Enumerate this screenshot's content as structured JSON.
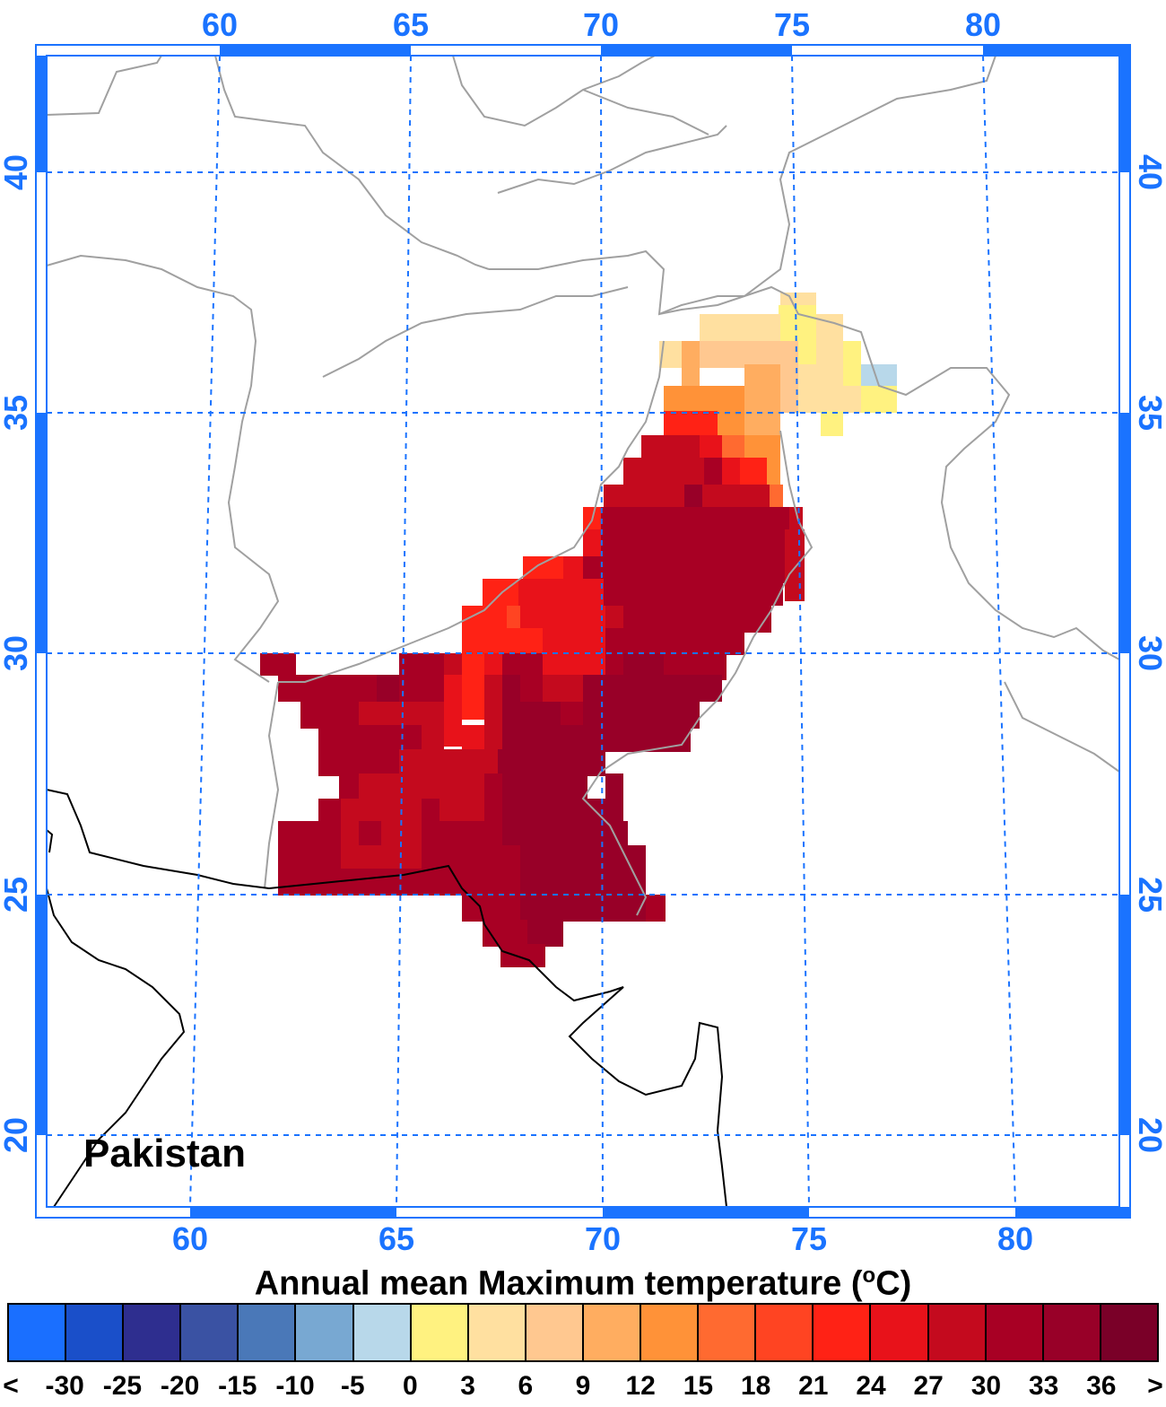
{
  "map": {
    "title": "Pakistan",
    "top_lon_labels": [
      "60",
      "65",
      "70",
      "75",
      "80"
    ],
    "bottom_lon_labels": [
      "60",
      "65",
      "70",
      "75",
      "80"
    ],
    "left_lat_labels": [
      "40",
      "35",
      "30",
      "25",
      "20"
    ],
    "right_lat_labels": [
      "40",
      "35",
      "30",
      "25",
      "20"
    ],
    "gridline_color": "#1a73ff",
    "frame_color": "#1a73ff"
  },
  "legend": {
    "title_main": "Annual mean Maximum temperature (",
    "title_sup": "o",
    "title_end": "C)",
    "below_label": "<",
    "above_label": ">",
    "labels": [
      "-30",
      "-25",
      "-20",
      "-15",
      "-10",
      "-5",
      "0",
      "3",
      "6",
      "9",
      "12",
      "15",
      "18",
      "21",
      "24",
      "27",
      "30",
      "33",
      "36"
    ],
    "colors": [
      "#1a6fff",
      "#1a4fc9",
      "#2e2e8f",
      "#3a52a3",
      "#4a78b8",
      "#78a8d2",
      "#b8d8ea",
      "#fff280",
      "#ffe0a0",
      "#ffc890",
      "#ffad60",
      "#ff9238",
      "#ff6a30",
      "#ff4422",
      "#ff2215",
      "#e8121a",
      "#c40a1e",
      "#a80024",
      "#980028",
      "#7a0028"
    ]
  },
  "chart_data": {
    "type": "heatmap",
    "title": "Pakistan",
    "colorbar_label": "Annual mean Maximum temperature (oC)",
    "x_ticks": [
      60,
      65,
      70,
      75,
      80
    ],
    "y_ticks": [
      40,
      35,
      30,
      25,
      20
    ],
    "color_bins": [
      -30,
      -25,
      -20,
      -15,
      -10,
      -5,
      0,
      3,
      6,
      9,
      12,
      15,
      18,
      21,
      24,
      27,
      30,
      33,
      36
    ]
  }
}
